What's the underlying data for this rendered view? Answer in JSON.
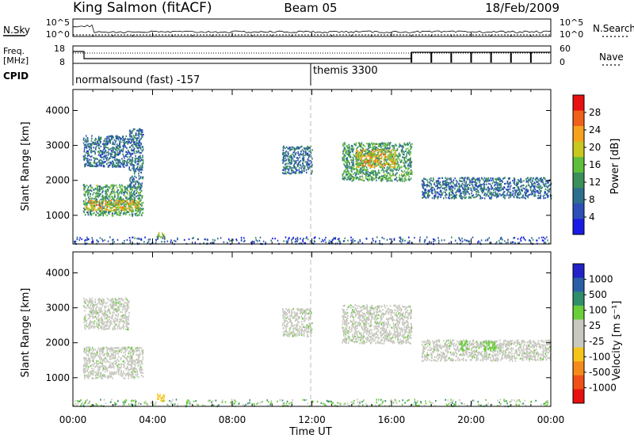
{
  "header": {
    "station": "King Salmon (fitACF)",
    "beam": "Beam 05",
    "date": "18/Feb/2009"
  },
  "top_panels": {
    "nsky_label": "N.Sky",
    "nsearch_label": "N.Search",
    "noise_tick_top": "10^5",
    "noise_tick_bottom": "10^0",
    "freq_label_line1": "Freq.",
    "freq_label_line2": "[MHz]",
    "freq_ticks": [
      "18",
      "8"
    ],
    "nave_label": "Nave",
    "nave_ticks": [
      "60",
      "0"
    ],
    "cpid_label": "CPID",
    "cpid_modes": [
      {
        "name": "normalsound (fast) -157",
        "start_hour": 0
      },
      {
        "name": "themis 3300",
        "start_hour": 12
      }
    ]
  },
  "colors": {
    "power_scale": [
      "#1a1ae6",
      "#2c4fb8",
      "#2e6e8e",
      "#3a8f5a",
      "#5fbf3a",
      "#c8c820",
      "#f7a21c",
      "#f06018",
      "#e81010"
    ],
    "velocity_scale": [
      "#2222c8",
      "#2a5fa8",
      "#2f8f6a",
      "#6acd3a",
      "#c8c8c0",
      "#c8c8c0",
      "#f7c41c",
      "#f58a1c",
      "#f05018",
      "#e81010"
    ],
    "gridline": "#bbbbbb"
  },
  "chart_data": [
    {
      "type": "heatmap",
      "panel": "power",
      "title": "",
      "xlabel": "Time UT",
      "ylabel": "Slant Range [km]",
      "x_ticks": [
        "00:00",
        "04:00",
        "08:00",
        "12:00",
        "16:00",
        "20:00",
        "00:00"
      ],
      "xlim_hours": [
        0,
        24
      ],
      "ylim_km": [
        180,
        4600
      ],
      "y_ticks": [
        1000,
        2000,
        3000,
        4000
      ],
      "colorbar_label": "Power [dB]",
      "colorbar_ticks": [
        "4",
        "8",
        "12",
        "16",
        "20",
        "24",
        "28"
      ],
      "colorbar_range": [
        0,
        30
      ],
      "regions": [
        {
          "t0": 0.5,
          "t1": 3.5,
          "r0": 1000,
          "r1": 1900,
          "level": 12
        },
        {
          "t0": 0.6,
          "t1": 3.3,
          "r0": 1150,
          "r1": 1450,
          "level": 20
        },
        {
          "t0": 0.5,
          "t1": 2.8,
          "r0": 2400,
          "r1": 3300,
          "level": 8
        },
        {
          "t0": 2.8,
          "t1": 3.5,
          "r0": 1800,
          "r1": 3500,
          "level": 8
        },
        {
          "t0": 4.2,
          "t1": 4.6,
          "r0": 350,
          "r1": 550,
          "level": 14
        },
        {
          "t0": 10.5,
          "t1": 12.0,
          "r0": 2200,
          "r1": 3000,
          "level": 8
        },
        {
          "t0": 13.5,
          "t1": 17.0,
          "r0": 2000,
          "r1": 3100,
          "level": 12
        },
        {
          "t0": 14.2,
          "t1": 16.2,
          "r0": 2400,
          "r1": 2900,
          "level": 20
        },
        {
          "t0": 17.5,
          "t1": 24.0,
          "r0": 1500,
          "r1": 2100,
          "level": 8
        },
        {
          "t0": 0.0,
          "t1": 24.0,
          "r0": 200,
          "r1": 400,
          "level": 6
        }
      ]
    },
    {
      "type": "heatmap",
      "panel": "velocity",
      "title": "",
      "xlabel": "Time UT",
      "ylabel": "Slant Range [km]",
      "x_ticks": [
        "00:00",
        "04:00",
        "08:00",
        "12:00",
        "16:00",
        "20:00",
        "00:00"
      ],
      "xlim_hours": [
        0,
        24
      ],
      "ylim_km": [
        180,
        4600
      ],
      "y_ticks": [
        1000,
        2000,
        3000,
        4000
      ],
      "colorbar_label": "Velocity [m s⁻¹]",
      "colorbar_ticks": [
        "1000",
        "500",
        "100",
        "25",
        "-25",
        "-100",
        "-500",
        "-1000"
      ],
      "regions": [
        {
          "t0": 0.5,
          "t1": 3.5,
          "r0": 1000,
          "r1": 1900,
          "velocity": 0
        },
        {
          "t0": 0.5,
          "t1": 2.8,
          "r0": 2400,
          "r1": 3300,
          "velocity": 0
        },
        {
          "t0": 4.2,
          "t1": 4.6,
          "r0": 350,
          "r1": 550,
          "velocity": -150
        },
        {
          "t0": 10.5,
          "t1": 12.0,
          "r0": 2200,
          "r1": 3000,
          "velocity": 0
        },
        {
          "t0": 13.5,
          "t1": 17.0,
          "r0": 2000,
          "r1": 3100,
          "velocity": 0
        },
        {
          "t0": 17.5,
          "t1": 24.0,
          "r0": 1500,
          "r1": 2100,
          "velocity": 0
        },
        {
          "t0": 19.4,
          "t1": 19.8,
          "r0": 1800,
          "r1": 2100,
          "velocity": 60
        },
        {
          "t0": 20.6,
          "t1": 21.2,
          "r0": 1800,
          "r1": 2050,
          "velocity": 60
        },
        {
          "t0": 0.0,
          "t1": 24.0,
          "r0": 200,
          "r1": 400,
          "velocity": 40
        }
      ]
    }
  ]
}
